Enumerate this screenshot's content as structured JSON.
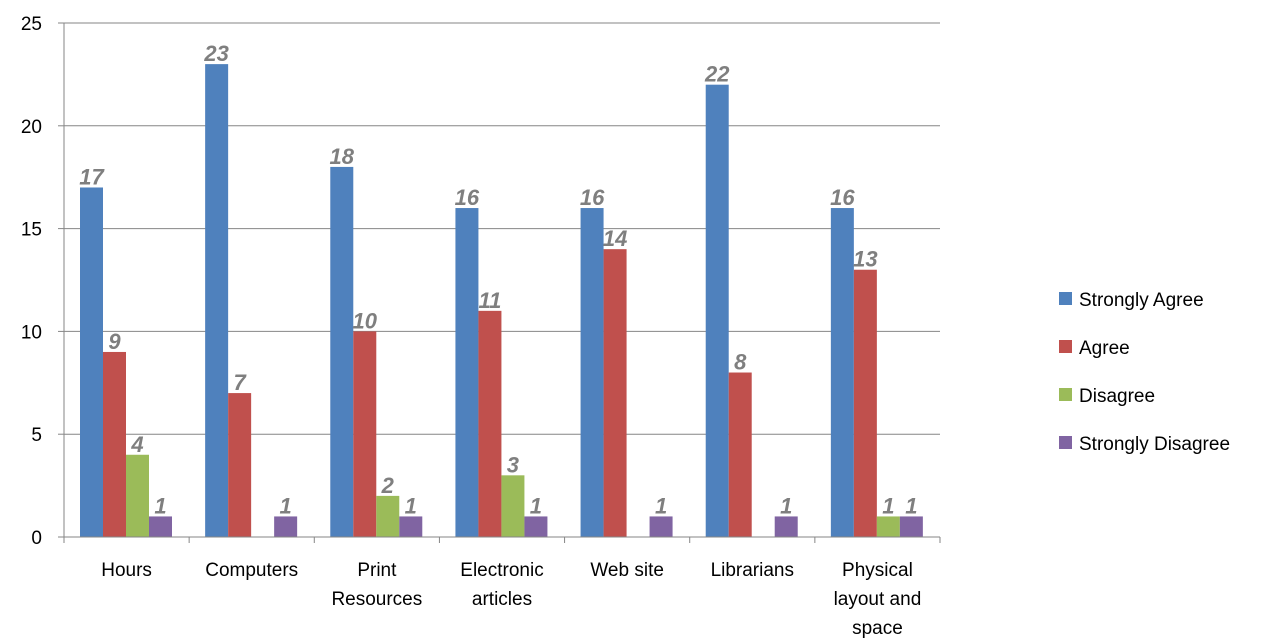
{
  "chart_data": {
    "type": "bar",
    "title": "",
    "xlabel": "",
    "ylabel": "",
    "ylim": [
      0,
      25
    ],
    "yticks": [
      0,
      5,
      10,
      15,
      20,
      25
    ],
    "grid": true,
    "legend_position": "right",
    "categories": [
      [
        "Hours"
      ],
      [
        "Computers"
      ],
      [
        "Print",
        "Resources"
      ],
      [
        "Electronic",
        "articles"
      ],
      [
        "Web site"
      ],
      [
        "Librarians"
      ],
      [
        "Physical",
        "layout and",
        "space"
      ]
    ],
    "series": [
      {
        "name": "Strongly Agree",
        "color": "#4F81BD",
        "values": [
          17,
          23,
          18,
          16,
          16,
          22,
          16
        ]
      },
      {
        "name": "Agree",
        "color": "#C0504D",
        "values": [
          9,
          7,
          10,
          11,
          14,
          8,
          13
        ]
      },
      {
        "name": "Disagree",
        "color": "#9BBB59",
        "values": [
          4,
          null,
          2,
          3,
          null,
          null,
          1
        ]
      },
      {
        "name": "Strongly Disagree",
        "color": "#8064A2",
        "values": [
          1,
          1,
          1,
          1,
          1,
          1,
          1
        ]
      }
    ]
  }
}
